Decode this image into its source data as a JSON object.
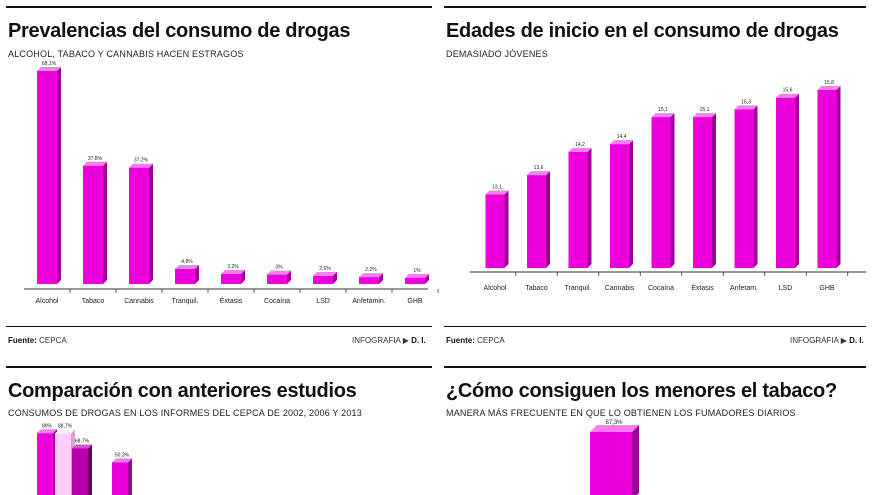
{
  "colors": {
    "bar_front": "#ee00dd",
    "bar_side": "#a0009a",
    "bar_top": "#ff7af4",
    "bar_light": "#ffd0fb",
    "bar_mid": "#b800b0",
    "axis": "#333333",
    "rule": "#111111"
  },
  "panels": {
    "prevalencias": {
      "title": "Prevalencias del consumo de drogas",
      "subtitle": "ALCOHOL, TABACO Y CANNABIS HACEN ESTRAGOS",
      "source_label": "Fuente:",
      "source_value": "CEPCA",
      "credit_label": "INFOGRAFIA",
      "credit_value": "D. I."
    },
    "edades": {
      "title": "Edades de inicio en el consumo de drogas",
      "subtitle": "DEMASIADO JÓVENES",
      "source_label": "Fuente:",
      "source_value": "CEPCA",
      "credit_label": "INFOGRAFIA",
      "credit_value": "D. I."
    },
    "comparacion": {
      "title": "Comparación con anteriores estudios",
      "subtitle": "CONSUMOS DE DROGAS EN LOS INFORMES DEL CEPCA DE 2002, 2006 Y 2013"
    },
    "tabaco": {
      "title": "¿Cómo consiguen los menores el tabaco?",
      "subtitle": "MANERA MÁS FRECUENTE EN QUE LO OBTIENEN LOS FUMADORES DIARIOS"
    }
  },
  "chart_data": [
    {
      "type": "bar",
      "categories": [
        "Alcohol",
        "Tabaco",
        "Cannabis",
        "Tranquil.",
        "Éxtasis",
        "Cocaína",
        "LSD",
        "Anfetamin.",
        "GHB"
      ],
      "values": [
        68.1,
        37.8,
        37.2,
        4.8,
        3.2,
        3,
        2.6,
        2.2,
        1
      ],
      "labels": [
        "68,1%",
        "37,8%",
        "37,2%",
        "4,8%",
        "3,2%",
        "3%",
        "2,6%",
        "2,2%",
        "1%"
      ],
      "title": "Prevalencias del consumo de drogas",
      "subtitle": "ALCOHOL, TABACO Y CANNABIS HACEN ESTRAGOS",
      "ylim": [
        0,
        68.1
      ]
    },
    {
      "type": "bar",
      "categories": [
        "Alcohol",
        "Tabaco",
        "Tranquil.",
        "Cannabis",
        "Cocaína",
        "Éxtasis",
        "Anfetam.",
        "LSD",
        "GHB"
      ],
      "values": [
        13.1,
        13.6,
        14.2,
        14.4,
        15.1,
        15.1,
        15.3,
        15.6,
        15.8
      ],
      "labels": [
        "13,1",
        "13,6",
        "14,2",
        "14,4",
        "15,1",
        "15,1",
        "15,3",
        "15,6",
        "15,8"
      ],
      "title": "Edades de inicio en el consumo de drogas",
      "subtitle": "DEMASIADO JÓVENES",
      "ylim": [
        11.2,
        15.8
      ]
    },
    {
      "type": "bar",
      "title": "Comparación con anteriores estudios",
      "subtitle": "CONSUMOS DE DROGAS EN LOS INFORMES DEL CEPCA DE 2002, 2006 Y 2013",
      "visible_values": [
        89,
        88.7,
        68.7,
        50.3
      ],
      "visible_labels": [
        "89%",
        "88,7%",
        "68,7%",
        "50,3%"
      ]
    },
    {
      "type": "bar",
      "title": "¿Cómo consiguen los menores el tabaco?",
      "subtitle": "MANERA MÁS FRECUENTE EN QUE LO OBTIENEN LOS FUMADORES DIARIOS",
      "visible_values": [
        87.3
      ],
      "visible_labels": [
        "87,3%"
      ]
    }
  ]
}
